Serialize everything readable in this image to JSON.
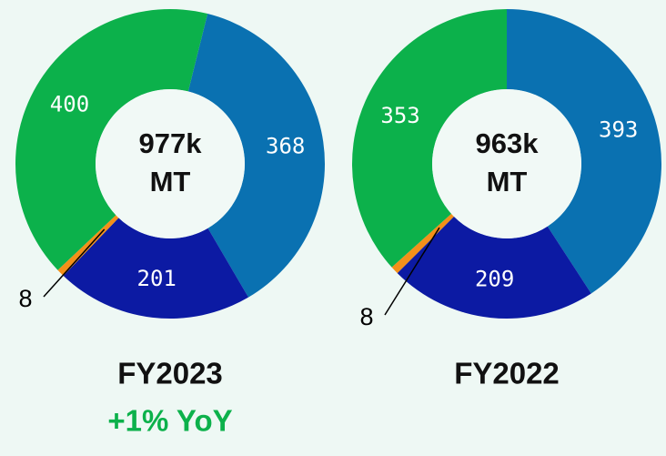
{
  "chart_data": [
    {
      "type": "donut",
      "values": [
        368,
        201,
        8,
        400
      ],
      "colors": [
        "#0a71b1",
        "#0c1aa3",
        "#f39019",
        "#0cb14b"
      ],
      "center_label": [
        "977k",
        "MT"
      ],
      "caption": "FY2023",
      "subtitle": "+1% YoY",
      "subtitle_color": "#0cb14b"
    },
    {
      "type": "donut",
      "values": [
        393,
        209,
        8,
        353
      ],
      "colors": [
        "#0a71b1",
        "#0c1aa3",
        "#f39019",
        "#0cb14b"
      ],
      "center_label": [
        "963k",
        "MT"
      ],
      "caption": "FY2022"
    }
  ]
}
